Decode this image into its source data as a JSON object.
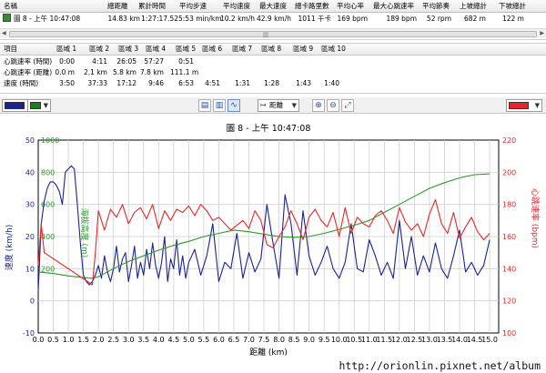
{
  "activity": {
    "columns": [
      "名稱",
      "總距離",
      "累計時間",
      "平均步速",
      "平均速度",
      "最大速度",
      "總卡路里數",
      "平均心率",
      "最大心跳速率",
      "平均節奏",
      "上坡總計",
      "下坡總計"
    ],
    "row": {
      "name": "圖 8 - 上午 10:47:08",
      "distance": "14.83 km",
      "time": "1:27:17.52",
      "pace": "5:53 min/km",
      "avg_speed": "10.2 km/h",
      "max_speed": "42.9 km/h",
      "calories": "1011 千卡",
      "avg_hr": "169 bpm",
      "max_hr": "189 bpm",
      "cadence": "52 rpm",
      "ascent": "682 m",
      "descent": "122 m"
    },
    "scroll_grip": "|||"
  },
  "zones": {
    "header": [
      "項目",
      "區域 1",
      "區域 2",
      "區域 3",
      "區域 4",
      "區域 5",
      "區域 6",
      "區域 7",
      "區域 8",
      "區域 9",
      "區域 10"
    ],
    "rows": [
      {
        "label": "心跳速率 (時間)",
        "values": [
          "0:00",
          "4:11",
          "26:05",
          "57:27",
          "0:51",
          "",
          "",
          "",
          "",
          ""
        ]
      },
      {
        "label": "心跳速率 (距離)",
        "values": [
          "0.0 m",
          "2.1 km",
          "5.8 km",
          "7.8 km",
          "111.1 m",
          "",
          "",
          "",
          "",
          ""
        ]
      },
      {
        "label": "速度 (時間)",
        "values": [
          "3:50",
          "37:33",
          "17:12",
          "9:46",
          "6:53",
          "4:51",
          "1:31",
          "1:28",
          "1:43",
          "1:40"
        ]
      }
    ]
  },
  "toolbar": {
    "left_color": "#1a2390",
    "right_color": "#1e7d1e",
    "x_axis_select": "距離"
  },
  "chart_data": {
    "type": "line",
    "title": "圖 8 - 上午 10:47:08",
    "xlabel": "距離 (km)",
    "ylabel_left": "速度 (km/h)",
    "ylabel_left_secondary": "海拔高度 (m)",
    "ylabel_right": "心跳速率 (bpm)",
    "xlim": [
      0,
      15.3
    ],
    "x_ticks": [
      "0.0",
      "0.5",
      "1.0",
      "1.5",
      "2.0",
      "2.5",
      "3.0",
      "3.5",
      "4.0",
      "4.5",
      "5.0",
      "5.5",
      "6.0",
      "6.5",
      "7.0",
      "7.5",
      "8.0",
      "8.5",
      "9.0",
      "9.5",
      "10.0",
      "10.5",
      "11.0",
      "11.5",
      "12.0",
      "12.5",
      "13.0",
      "13.5",
      "14.0",
      "14.5",
      "15.0"
    ],
    "ylim_speed": [
      -10,
      50
    ],
    "y_ticks_speed": [
      "50",
      "40",
      "30",
      "20",
      "10",
      "0",
      "-10"
    ],
    "ylim_altitude": [
      -200,
      1000
    ],
    "y_ticks_altitude": [
      "1000",
      "800",
      "600",
      "400",
      "200"
    ],
    "ylim_hr": [
      100,
      220
    ],
    "y_ticks_hr": [
      "220",
      "200",
      "180",
      "160",
      "140",
      "120",
      "100"
    ],
    "grid": true,
    "series": [
      {
        "name": "速度",
        "color": "#1a2390",
        "x": [
          0,
          0.1,
          0.2,
          0.3,
          0.4,
          0.5,
          0.6,
          0.7,
          0.8,
          0.9,
          1.0,
          1.1,
          1.2,
          1.3,
          1.4,
          1.5,
          1.6,
          1.7,
          1.8,
          1.9,
          2.0,
          2.1,
          2.2,
          2.3,
          2.4,
          2.5,
          2.6,
          2.7,
          2.8,
          2.9,
          3.0,
          3.1,
          3.2,
          3.3,
          3.4,
          3.5,
          3.6,
          3.7,
          3.8,
          3.9,
          4.0,
          4.1,
          4.2,
          4.3,
          4.4,
          4.5,
          4.6,
          4.7,
          4.8,
          4.9,
          5.0,
          5.2,
          5.4,
          5.6,
          5.8,
          6.0,
          6.2,
          6.4,
          6.6,
          6.8,
          7.0,
          7.2,
          7.4,
          7.6,
          7.8,
          8.0,
          8.2,
          8.4,
          8.6,
          8.8,
          9.0,
          9.2,
          9.4,
          9.6,
          9.8,
          10.0,
          10.2,
          10.4,
          10.6,
          10.8,
          11.0,
          11.2,
          11.4,
          11.6,
          11.8,
          12.0,
          12.2,
          12.4,
          12.6,
          12.8,
          13.0,
          13.2,
          13.4,
          13.6,
          13.8,
          14.0,
          14.2,
          14.4,
          14.6,
          14.8,
          15.0
        ],
        "values": [
          3,
          24,
          31,
          35,
          37,
          37,
          36,
          34,
          30,
          40,
          41,
          42,
          41,
          30,
          18,
          8,
          6,
          5,
          6,
          8,
          11,
          7,
          14,
          9,
          6,
          10,
          17,
          9,
          13,
          15,
          6,
          11,
          17,
          7,
          12,
          8,
          16,
          10,
          18,
          11,
          7,
          12,
          20,
          6,
          13,
          10,
          19,
          8,
          14,
          7,
          12,
          16,
          8,
          14,
          24,
          6,
          12,
          10,
          21,
          7,
          15,
          9,
          13,
          30,
          18,
          7,
          33,
          24,
          8,
          28,
          14,
          8,
          12,
          17,
          10,
          7,
          12,
          24,
          10,
          9,
          19,
          14,
          8,
          12,
          7,
          25,
          10,
          20,
          8,
          14,
          9,
          18,
          10,
          7,
          14,
          22,
          9,
          12,
          8,
          11,
          19
        ]
      },
      {
        "name": "海拔高度",
        "color": "#2b9a2b",
        "x": [
          0,
          0.5,
          1.0,
          1.5,
          1.8,
          2.0,
          2.5,
          3.0,
          3.5,
          4.0,
          4.5,
          5.0,
          5.5,
          6.0,
          6.5,
          7.0,
          7.5,
          8.0,
          8.5,
          9.0,
          9.5,
          10.0,
          10.5,
          11.0,
          11.5,
          12.0,
          12.5,
          13.0,
          13.5,
          14.0,
          14.5,
          15.0
        ],
        "values": [
          180,
          170,
          155,
          145,
          140,
          150,
          200,
          245,
          280,
          315,
          345,
          370,
          400,
          420,
          440,
          430,
          415,
          400,
          395,
          400,
          420,
          445,
          470,
          500,
          550,
          600,
          650,
          700,
          735,
          765,
          785,
          790
        ]
      },
      {
        "name": "心跳速率",
        "color": "#e8242a",
        "x": [
          0,
          0.1,
          0.2,
          1.8,
          1.9,
          2.0,
          2.2,
          2.4,
          2.6,
          2.8,
          3.0,
          3.2,
          3.4,
          3.6,
          3.8,
          4.0,
          4.2,
          4.4,
          4.6,
          4.8,
          5.0,
          5.2,
          5.4,
          5.6,
          5.8,
          6.0,
          6.2,
          6.4,
          6.6,
          6.8,
          7.0,
          7.2,
          7.4,
          7.6,
          7.8,
          8.0,
          8.2,
          8.4,
          8.6,
          8.8,
          9.0,
          9.2,
          9.4,
          9.6,
          9.8,
          10.0,
          10.2,
          10.4,
          10.6,
          10.8,
          11.0,
          11.2,
          11.4,
          11.6,
          11.8,
          12.0,
          12.2,
          12.4,
          12.6,
          12.8,
          13.0,
          13.2,
          13.4,
          13.6,
          13.8,
          14.0,
          14.2,
          14.4,
          14.6,
          14.8,
          15.0
        ],
        "values": [
          142,
          168,
          150,
          130,
          150,
          176,
          164,
          177,
          172,
          180,
          168,
          175,
          178,
          171,
          180,
          165,
          176,
          170,
          177,
          175,
          179,
          173,
          180,
          176,
          170,
          172,
          168,
          164,
          167,
          170,
          165,
          176,
          170,
          155,
          153,
          160,
          166,
          176,
          168,
          158,
          172,
          177,
          170,
          166,
          175,
          160,
          178,
          162,
          172,
          168,
          166,
          173,
          176,
          170,
          162,
          178,
          169,
          164,
          168,
          160,
          174,
          183,
          168,
          162,
          175,
          159,
          166,
          172,
          163,
          158,
          162
        ]
      }
    ]
  },
  "watermark": "http://orionlin.pixnet.net/album"
}
